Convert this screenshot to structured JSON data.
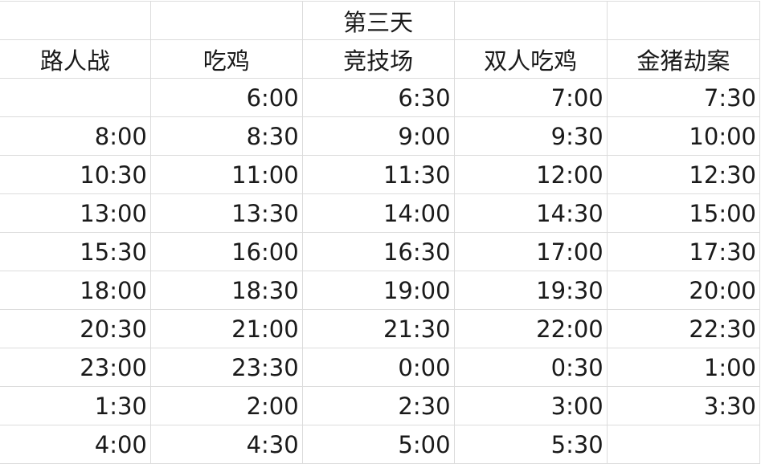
{
  "title": "第三天",
  "headers": [
    "路人战",
    "吃鸡",
    "竞技场",
    "双人吃鸡",
    "金猪劫案"
  ],
  "rows": [
    [
      "",
      "6:00",
      "6:30",
      "7:00",
      "7:30"
    ],
    [
      "8:00",
      "8:30",
      "9:00",
      "9:30",
      "10:00"
    ],
    [
      "10:30",
      "11:00",
      "11:30",
      "12:00",
      "12:30"
    ],
    [
      "13:00",
      "13:30",
      "14:00",
      "14:30",
      "15:00"
    ],
    [
      "15:30",
      "16:00",
      "16:30",
      "17:00",
      "17:30"
    ],
    [
      "18:00",
      "18:30",
      "19:00",
      "19:30",
      "20:00"
    ],
    [
      "20:30",
      "21:00",
      "21:30",
      "22:00",
      "22:30"
    ],
    [
      "23:00",
      "23:30",
      "0:00",
      "0:30",
      "1:00"
    ],
    [
      "1:30",
      "2:00",
      "2:30",
      "3:00",
      "3:30"
    ],
    [
      "4:00",
      "4:30",
      "5:00",
      "5:30",
      ""
    ]
  ]
}
